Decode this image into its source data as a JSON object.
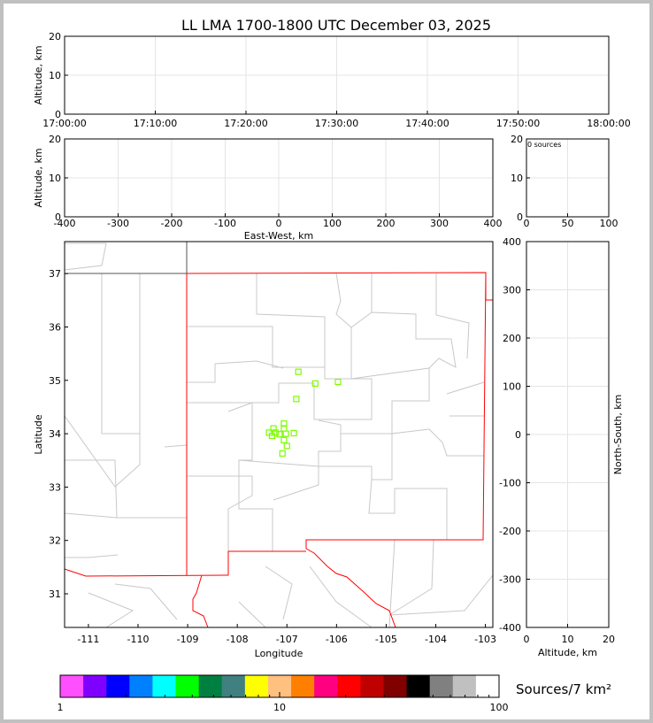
{
  "title": "LL LMA 1700-1800 UTC December 03, 2025",
  "chart_data": [
    {
      "type": "scatter",
      "panel": "altitude-time",
      "ylabel": "Altitude, km",
      "ylim": [
        0,
        20
      ],
      "yticks": [
        "0",
        "10",
        "20"
      ],
      "xticks": [
        "17:00:00",
        "17:10:00",
        "17:20:00",
        "17:30:00",
        "17:40:00",
        "17:50:00",
        "18:00:00"
      ],
      "grid": true,
      "points": []
    },
    {
      "type": "scatter",
      "panel": "altitude-eastwest",
      "xlabel": "East-West, km",
      "ylabel": "Altitude, km",
      "xlim": [
        -400,
        400
      ],
      "ylim": [
        0,
        20
      ],
      "xticks": [
        "-400",
        "-300",
        "-200",
        "-100",
        "0",
        "100",
        "200",
        "300",
        "400"
      ],
      "yticks": [
        "0",
        "10",
        "20"
      ],
      "grid": true,
      "points": []
    },
    {
      "type": "histogram",
      "panel": "altitude-histogram",
      "annotation": "0 sources",
      "xlim": [
        0,
        100
      ],
      "ylim": [
        0,
        20
      ],
      "xticks": [
        "0",
        "50",
        "100"
      ],
      "yticks": [
        "0",
        "10",
        "20"
      ],
      "grid": true
    },
    {
      "type": "scatter",
      "panel": "plan-view",
      "xlabel": "Longitude",
      "ylabel": "Latitude",
      "xlim": [
        -111.48,
        -102.85
      ],
      "ylim": [
        30.37,
        37.6
      ],
      "xticks": [
        "-111",
        "-110",
        "-109",
        "-108",
        "-107",
        "-106",
        "-105",
        "-104",
        "-103"
      ],
      "yticks": [
        "31",
        "32",
        "33",
        "34",
        "35",
        "36",
        "37"
      ],
      "marker_color": "#7cfc00",
      "points": [
        [
          -106.77,
          35.16
        ],
        [
          -106.43,
          34.94
        ],
        [
          -105.97,
          34.97
        ],
        [
          -106.81,
          34.65
        ],
        [
          -107.06,
          34.19
        ],
        [
          -107.27,
          34.1
        ],
        [
          -107.06,
          34.1
        ],
        [
          -107.36,
          34.02
        ],
        [
          -107.23,
          34.02
        ],
        [
          -107.02,
          34.0
        ],
        [
          -106.86,
          34.01
        ],
        [
          -107.3,
          33.96
        ],
        [
          -107.15,
          33.99
        ],
        [
          -107.06,
          33.88
        ],
        [
          -107.0,
          33.77
        ],
        [
          -107.09,
          33.63
        ]
      ]
    },
    {
      "type": "scatter",
      "panel": "northsouth-altitude",
      "xlabel": "Altitude, km",
      "ylabel": "North-South, km",
      "xlim": [
        0,
        20
      ],
      "ylim": [
        -400,
        400
      ],
      "xticks": [
        "0",
        "10",
        "20"
      ],
      "yticks": [
        "-400",
        "-300",
        "-200",
        "-100",
        "0",
        "100",
        "200",
        "300",
        "400"
      ],
      "grid": true,
      "points": []
    }
  ],
  "colorbar": {
    "label": "Sources/7 km²",
    "scale": "log",
    "range": [
      1,
      100
    ],
    "ticks": [
      "1",
      "10",
      "100"
    ],
    "colors": [
      "#ff4fff",
      "#8000ff",
      "#0000ff",
      "#0080ff",
      "#00ffff",
      "#00ff00",
      "#008040",
      "#408080",
      "#ffff00",
      "#ffc080",
      "#ff8000",
      "#ff0080",
      "#ff0000",
      "#c00000",
      "#800000",
      "#000000",
      "#808080",
      "#c0c0c0",
      "#ffffff"
    ]
  }
}
